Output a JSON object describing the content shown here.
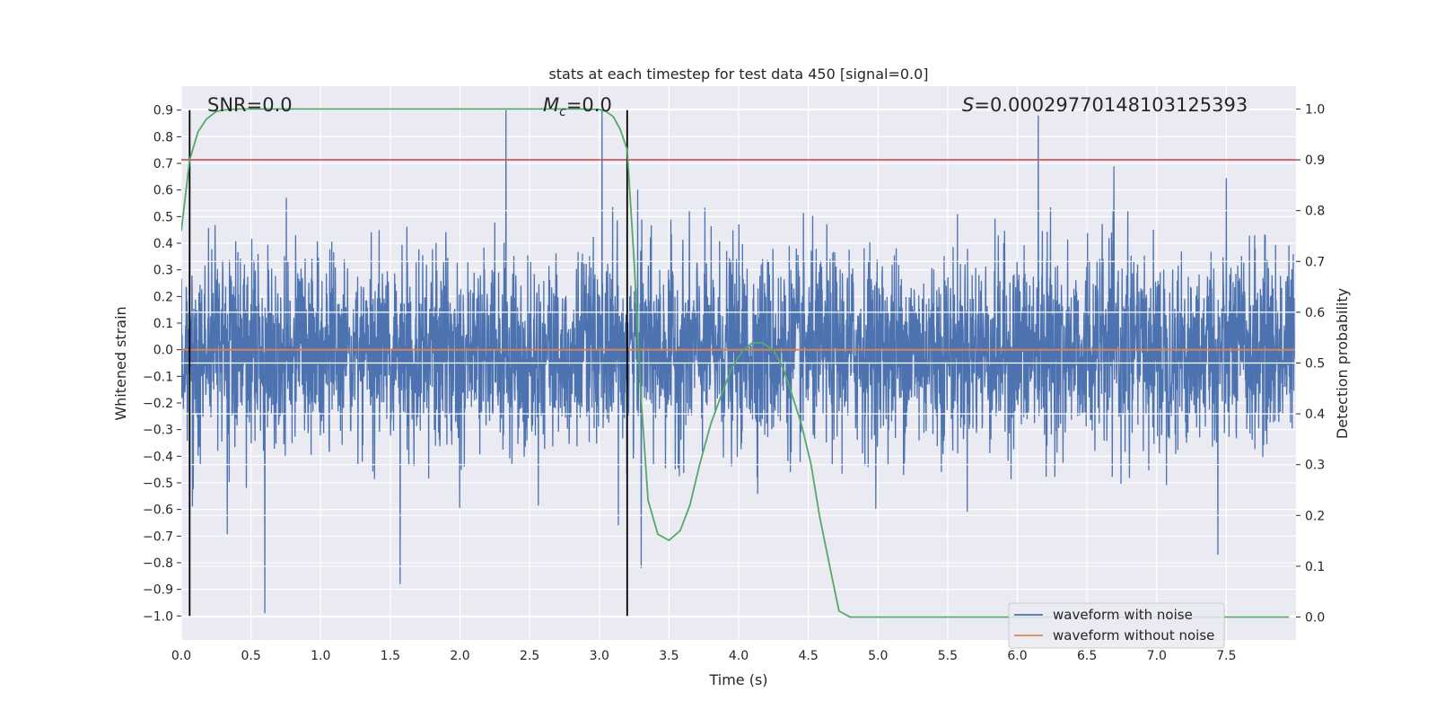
{
  "chart_data": {
    "type": "line",
    "title": "stats at each timestep for test data 450 [signal=0.0]",
    "xlabel": "Time (s)",
    "ylabel": "Whitened strain",
    "y2label": "Detection probability",
    "xlim": [
      0.0,
      8.0
    ],
    "ylim": [
      -1.09,
      0.99
    ],
    "y2lim": [
      -0.045,
      1.045
    ],
    "x_ticks": [
      0.0,
      0.5,
      1.0,
      1.5,
      2.0,
      2.5,
      3.0,
      3.5,
      4.0,
      4.5,
      5.0,
      5.5,
      6.0,
      6.5,
      7.0,
      7.5
    ],
    "x_tick_labels": [
      "0.0",
      "0.5",
      "1.0",
      "1.5",
      "2.0",
      "2.5",
      "3.0",
      "3.5",
      "4.0",
      "4.5",
      "5.0",
      "5.5",
      "6.0",
      "6.5",
      "7.0",
      "7.5"
    ],
    "y_ticks": [
      0.9,
      0.8,
      0.7,
      0.6,
      0.5,
      0.4,
      0.3,
      0.2,
      0.1,
      0.0,
      -0.1,
      -0.2,
      -0.3,
      -0.4,
      -0.5,
      -0.6,
      -0.7,
      -0.8,
      -0.9,
      -1.0
    ],
    "y_tick_labels": [
      "0.9",
      "0.8",
      "0.7",
      "0.6",
      "0.5",
      "0.4",
      "0.3",
      "0.2",
      "0.1",
      "0.0",
      "−0.1",
      "−0.2",
      "−0.3",
      "−0.4",
      "−0.5",
      "−0.6",
      "−0.7",
      "−0.8",
      "−0.9",
      "−1.0"
    ],
    "y2_ticks": [
      1.0,
      0.9,
      0.8,
      0.7,
      0.6,
      0.5,
      0.4,
      0.3,
      0.2,
      0.1,
      0.0
    ],
    "y2_tick_labels": [
      "1.0",
      "0.9",
      "0.8",
      "0.7",
      "0.6",
      "0.5",
      "0.4",
      "0.3",
      "0.2",
      "0.1",
      "0.0"
    ],
    "grid": true,
    "legend": {
      "placement": "lower-right",
      "entries": [
        {
          "label": "waveform with noise",
          "color": "#4c72b0"
        },
        {
          "label": "waveform without noise",
          "color": "#dd8452"
        }
      ]
    },
    "annotations": {
      "snr": "SNR=0.0",
      "mc_symbol": "M",
      "mc_sub": "c",
      "mc_value": "=0.0",
      "s_symbol": "S",
      "s_value": "=0.00029770148103125393"
    },
    "series": [
      {
        "name": "waveform with noise",
        "color": "#4c72b0",
        "axis": "left",
        "kind": "dense-noise",
        "t_start": 0.0,
        "t_end": 7.99,
        "sample_rate": 512,
        "sigma": 0.18,
        "spikes": [
          {
            "t": 0.6,
            "v": -0.99
          },
          {
            "t": 1.57,
            "v": -0.88
          },
          {
            "t": 2.33,
            "v": 0.9
          },
          {
            "t": 3.02,
            "v": 0.9
          },
          {
            "t": 3.3,
            "v": -0.82
          },
          {
            "t": 6.15,
            "v": 0.88
          },
          {
            "t": 7.44,
            "v": -0.77
          }
        ]
      },
      {
        "name": "waveform without noise",
        "color": "#dd8452",
        "axis": "left",
        "x": [
          0.0,
          7.99
        ],
        "y": [
          0.0,
          0.0
        ]
      },
      {
        "name": "detection probability",
        "color": "#55a868",
        "axis": "right",
        "x": [
          0.0,
          0.06,
          0.12,
          0.18,
          0.25,
          0.3,
          0.4,
          1.0,
          2.0,
          2.9,
          3.0,
          3.05,
          3.1,
          3.15,
          3.2,
          3.25,
          3.3,
          3.35,
          3.42,
          3.5,
          3.58,
          3.65,
          3.72,
          3.8,
          3.88,
          3.95,
          4.03,
          4.1,
          4.17,
          4.25,
          4.32,
          4.38,
          4.45,
          4.52,
          4.58,
          4.65,
          4.72,
          4.8,
          7.95
        ],
        "y": [
          0.76,
          0.9,
          0.955,
          0.98,
          0.995,
          0.998,
          1.0,
          1.0,
          1.0,
          1.0,
          0.999,
          0.995,
          0.985,
          0.96,
          0.92,
          0.7,
          0.43,
          0.23,
          0.163,
          0.151,
          0.17,
          0.22,
          0.3,
          0.38,
          0.44,
          0.49,
          0.525,
          0.54,
          0.54,
          0.525,
          0.49,
          0.44,
          0.38,
          0.3,
          0.2,
          0.105,
          0.012,
          0.0,
          0.0
        ]
      }
    ],
    "hlines": [
      {
        "name": "threshold",
        "axis": "right",
        "y": 0.9,
        "color": "#c44e52"
      }
    ],
    "vlines": [
      {
        "name": "detection-start",
        "x": 0.06,
        "y_from": -1.0,
        "y_to": 0.9,
        "color": "#000000"
      },
      {
        "name": "detection-end",
        "x": 3.2,
        "y_from": -1.0,
        "y_to": 0.9,
        "color": "#000000"
      }
    ]
  }
}
